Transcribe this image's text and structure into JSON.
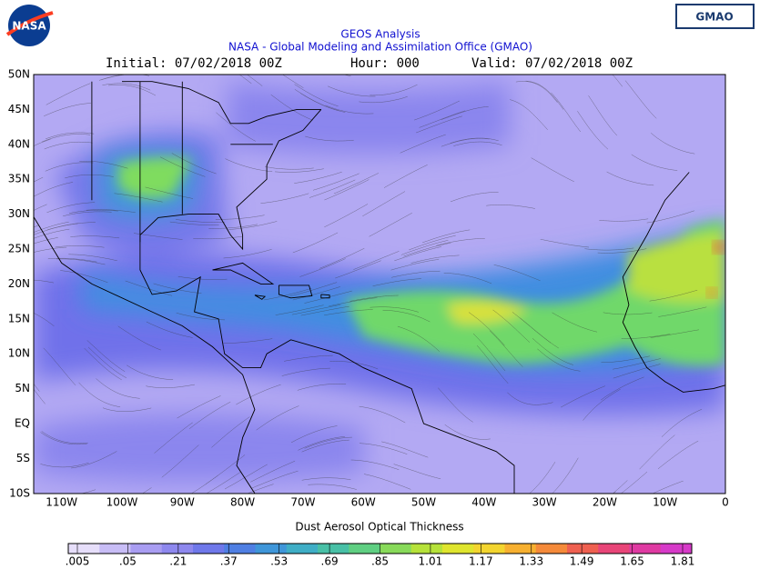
{
  "header": {
    "logo": "NASA",
    "title": "GEOS Analysis",
    "subtitle": "NASA - Global Modeling and Assimilation Office (GMAO)",
    "initial": "Initial: 07/02/2018 00Z",
    "hour": "Hour: 000",
    "valid": "Valid: 07/02/2018 00Z",
    "badge": "GMAO"
  },
  "map": {
    "lat_labels": [
      "50N",
      "45N",
      "40N",
      "35N",
      "30N",
      "25N",
      "20N",
      "15N",
      "10N",
      "5N",
      "EQ",
      "5S",
      "10S"
    ],
    "lon_labels": [
      "110W",
      "100W",
      "90W",
      "80W",
      "70W",
      "60W",
      "50W",
      "40W",
      "30W",
      "20W",
      "10W",
      "0"
    ]
  },
  "colorbar": {
    "title": "Dust Aerosol Optical Thickness",
    "ticks": [
      {
        "value": 0.005,
        "label": ".005"
      },
      {
        "value": 0.05,
        "label": ".05"
      },
      {
        "value": 0.21,
        "label": ".21"
      },
      {
        "value": 0.37,
        "label": ".37"
      },
      {
        "value": 0.53,
        "label": ".53"
      },
      {
        "value": 0.69,
        "label": ".69"
      },
      {
        "value": 0.85,
        "label": ".85"
      },
      1.01,
      1.17,
      1.33,
      1.49,
      1.65,
      1.81
    ]
  }
}
